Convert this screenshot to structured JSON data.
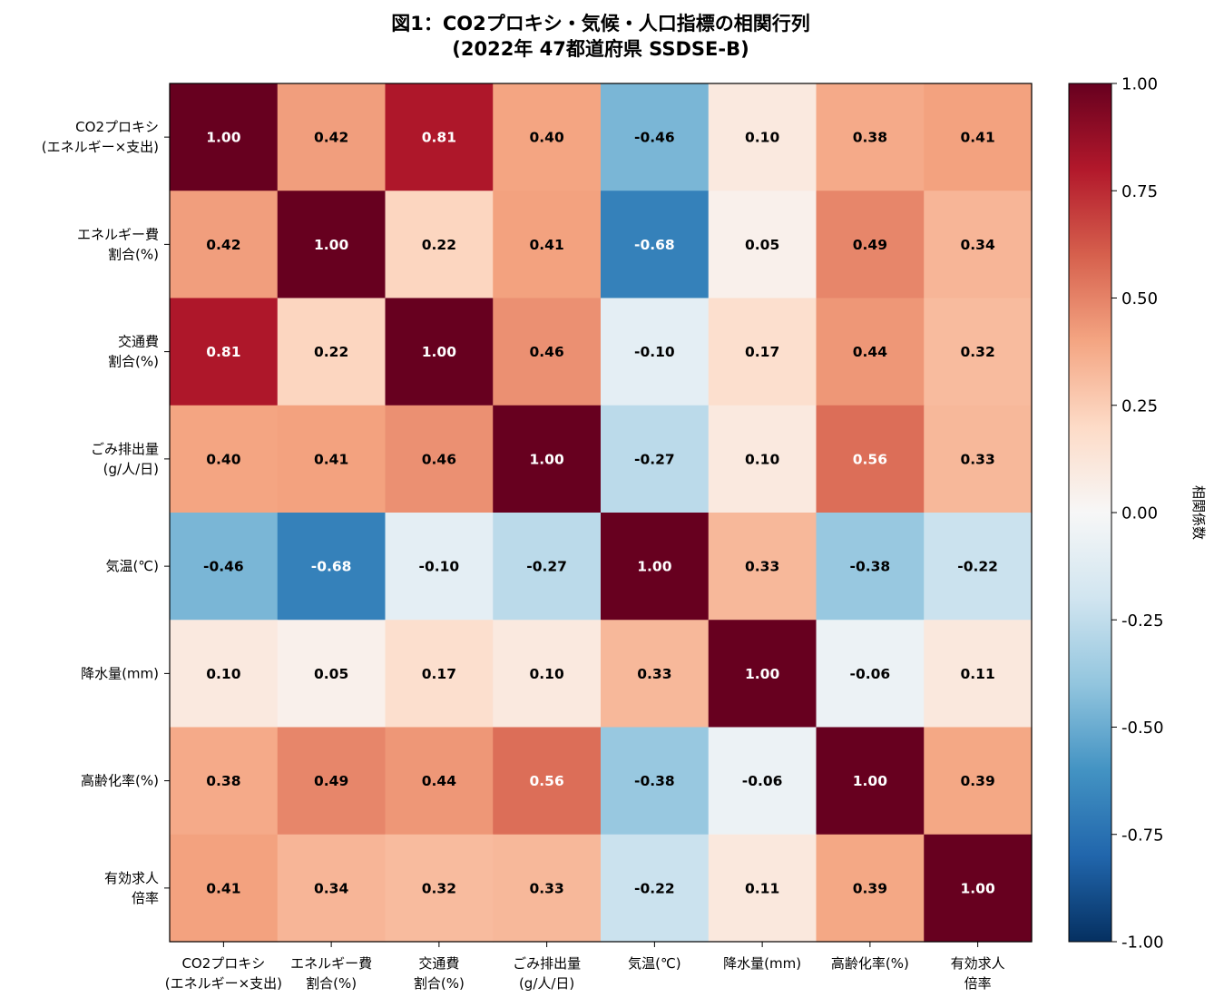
{
  "chart_data": {
    "type": "heatmap",
    "title_lines": [
      "図1：CO2プロキシ・気候・人口指標の相関行列",
      "(2022年 47都道府県 SSDSE-B)"
    ],
    "row_labels": [
      [
        "CO2プロキシ",
        "(エネルギー×支出)"
      ],
      [
        "エネルギー費",
        "割合(%)"
      ],
      [
        "交通費",
        "割合(%)"
      ],
      [
        "ごみ排出量",
        "(g/人/日)"
      ],
      [
        "気温(℃)"
      ],
      [
        "降水量(mm)"
      ],
      [
        "高齢化率(%)"
      ],
      [
        "有効求人",
        "倍率"
      ]
    ],
    "col_labels": [
      [
        "CO2プロキシ",
        "(エネルギー×支出)"
      ],
      [
        "エネルギー費",
        "割合(%)"
      ],
      [
        "交通費",
        "割合(%)"
      ],
      [
        "ごみ排出量",
        "(g/人/日)"
      ],
      [
        "気温(℃)"
      ],
      [
        "降水量(mm)"
      ],
      [
        "高齢化率(%)"
      ],
      [
        "有効求人",
        "倍率"
      ]
    ],
    "values": [
      [
        1.0,
        0.42,
        0.81,
        0.4,
        -0.46,
        0.1,
        0.38,
        0.41
      ],
      [
        0.42,
        1.0,
        0.22,
        0.41,
        -0.68,
        0.05,
        0.49,
        0.34
      ],
      [
        0.81,
        0.22,
        1.0,
        0.46,
        -0.1,
        0.17,
        0.44,
        0.32
      ],
      [
        0.4,
        0.41,
        0.46,
        1.0,
        -0.27,
        0.1,
        0.56,
        0.33
      ],
      [
        -0.46,
        -0.68,
        -0.1,
        -0.27,
        1.0,
        0.33,
        -0.38,
        -0.22
      ],
      [
        0.1,
        0.05,
        0.17,
        0.1,
        0.33,
        1.0,
        -0.06,
        0.11
      ],
      [
        0.38,
        0.49,
        0.44,
        0.56,
        -0.38,
        -0.06,
        1.0,
        0.39
      ],
      [
        0.41,
        0.34,
        0.32,
        0.33,
        -0.22,
        0.11,
        0.39,
        1.0
      ]
    ],
    "value_labels": [
      [
        "1.00",
        "0.42",
        "0.81",
        "0.40",
        "-0.46",
        "0.10",
        "0.38",
        "0.41"
      ],
      [
        "0.42",
        "1.00",
        "0.22",
        "0.41",
        "-0.68",
        "0.05",
        "0.49",
        "0.34"
      ],
      [
        "0.81",
        "0.22",
        "1.00",
        "0.46",
        "-0.10",
        "0.17",
        "0.44",
        "0.32"
      ],
      [
        "0.40",
        "0.41",
        "0.46",
        "1.00",
        "-0.27",
        "0.10",
        "0.56",
        "0.33"
      ],
      [
        "-0.46",
        "-0.68",
        "-0.10",
        "-0.27",
        "1.00",
        "0.33",
        "-0.38",
        "-0.22"
      ],
      [
        "0.10",
        "0.05",
        "0.17",
        "0.10",
        "0.33",
        "1.00",
        "-0.06",
        "0.11"
      ],
      [
        "0.38",
        "0.49",
        "0.44",
        "0.56",
        "-0.38",
        "-0.06",
        "1.00",
        "0.39"
      ],
      [
        "0.41",
        "0.34",
        "0.32",
        "0.33",
        "-0.22",
        "0.11",
        "0.39",
        "1.00"
      ]
    ],
    "colorscale": "RdBu_r",
    "vmin": -1.0,
    "vmax": 1.0,
    "colorbar_ticks": [
      "1.00",
      "0.75",
      "0.50",
      "0.25",
      "0.00",
      "-0.25",
      "-0.50",
      "-0.75",
      "-1.00"
    ],
    "colorbar_label": "相関係数",
    "grid": false,
    "legend": "colorbar-right"
  }
}
